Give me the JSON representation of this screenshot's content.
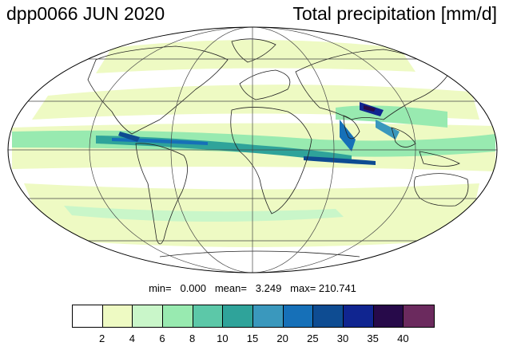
{
  "header": {
    "left_title": "dpp0066 JUN 2020",
    "right_title": "Total precipitation [mm/d]"
  },
  "stats": {
    "text": "min=   0.000   mean=   3.249   max= 210.741"
  },
  "map": {
    "projection": "mollweide",
    "graticule": true,
    "coastlines": true,
    "field": "total precipitation"
  },
  "colorbar": {
    "colors": [
      "#ffffff",
      "#eefac3",
      "#c9f6c9",
      "#98eab0",
      "#5cc8a8",
      "#2fa39a",
      "#3a98bd",
      "#1670b8",
      "#0e4c92",
      "#102590",
      "#270a4a",
      "#6b2a5e"
    ],
    "tick_labels": [
      "2",
      "4",
      "6",
      "8",
      "10",
      "15",
      "20",
      "25",
      "30",
      "35",
      "40"
    ]
  }
}
